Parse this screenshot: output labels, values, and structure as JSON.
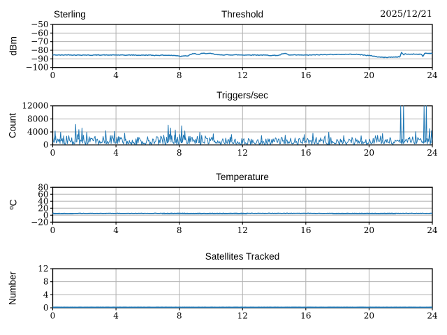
{
  "figure": {
    "background": "#ffffff",
    "line_color": "#1f77b4",
    "grid_color": "#b0b0b0",
    "spine_color": "#000000",
    "text_color": "#000000",
    "seed": 42
  },
  "chart_data": [
    {
      "type": "line",
      "title": "Threshold",
      "title_left": "Sterling",
      "title_right": "2025/12/21",
      "ylabel": "dBm",
      "xlim": [
        0,
        24
      ],
      "ylim": [
        -100,
        -50
      ],
      "xticks": [
        0,
        4,
        8,
        12,
        16,
        20,
        24
      ],
      "xtick_labels": [
        "0",
        "4",
        "8",
        "12",
        "16",
        "20",
        "24"
      ],
      "yticks": [
        -100,
        -90,
        -80,
        -70,
        -60,
        -50
      ],
      "ytick_labels": [
        "−100",
        "−90",
        "−80",
        "−70",
        "−60",
        "−50"
      ],
      "grid": true,
      "series": [
        {
          "name": "signal-strength-dbm",
          "mode": "fuzzy-line",
          "jitter": 0.38,
          "width": 1.5,
          "points": [
            [
              0,
              -85.4
            ],
            [
              0.5,
              -85.6
            ],
            [
              1,
              -85.3
            ],
            [
              1.5,
              -85.6
            ],
            [
              2,
              -85.5
            ],
            [
              2.5,
              -85.7
            ],
            [
              3,
              -85.4
            ],
            [
              3.5,
              -85.6
            ],
            [
              4,
              -85.5
            ],
            [
              4.5,
              -85.7
            ],
            [
              5,
              -85.5
            ],
            [
              5.5,
              -85.8
            ],
            [
              6,
              -85.6
            ],
            [
              6.5,
              -85.9
            ],
            [
              7,
              -85.7
            ],
            [
              7.5,
              -86.0
            ],
            [
              7.9,
              -86.2
            ],
            [
              8.1,
              -87.1
            ],
            [
              8.3,
              -86.2
            ],
            [
              8.55,
              -86.6
            ],
            [
              8.8,
              -84.2
            ],
            [
              9.0,
              -84.0
            ],
            [
              9.2,
              -84.9
            ],
            [
              9.45,
              -83.7
            ],
            [
              9.7,
              -83.6
            ],
            [
              10,
              -83.9
            ],
            [
              10.2,
              -84.6
            ],
            [
              10.5,
              -85.3
            ],
            [
              11,
              -85.4
            ],
            [
              11.5,
              -85.3
            ],
            [
              12,
              -85.5
            ],
            [
              12.5,
              -85.4
            ],
            [
              13,
              -85.5
            ],
            [
              13.5,
              -85.7
            ],
            [
              13.9,
              -86.0
            ],
            [
              14.3,
              -85.9
            ],
            [
              14.55,
              -84.0
            ],
            [
              14.75,
              -83.9
            ],
            [
              14.95,
              -85.6
            ],
            [
              15.5,
              -85.5
            ],
            [
              16,
              -85.6
            ],
            [
              16.5,
              -85.4
            ],
            [
              17,
              -85.2
            ],
            [
              17.5,
              -84.8
            ],
            [
              18,
              -84.9
            ],
            [
              18.5,
              -84.7
            ],
            [
              19,
              -84.6
            ],
            [
              19.4,
              -85.0
            ],
            [
              19.8,
              -85.8
            ],
            [
              20.2,
              -86.5
            ],
            [
              20.6,
              -87.8
            ],
            [
              21.0,
              -88.3
            ],
            [
              21.4,
              -88.0
            ],
            [
              21.7,
              -87.8
            ],
            [
              21.95,
              -87.6
            ],
            [
              22.05,
              -82.6
            ],
            [
              22.18,
              -85.2
            ],
            [
              22.3,
              -84.2
            ],
            [
              22.5,
              -84.6
            ],
            [
              22.8,
              -84.4
            ],
            [
              23.1,
              -84.5
            ],
            [
              23.3,
              -84.8
            ],
            [
              23.42,
              -87.2
            ],
            [
              23.52,
              -83.2
            ],
            [
              23.7,
              -83.7
            ],
            [
              23.85,
              -83.5
            ],
            [
              24,
              -83.6
            ]
          ]
        }
      ]
    },
    {
      "type": "line",
      "title": "Triggers/sec",
      "ylabel": "Count",
      "xlim": [
        0,
        24
      ],
      "ylim": [
        0,
        12000
      ],
      "xticks": [
        0,
        4,
        8,
        12,
        16,
        20,
        24
      ],
      "xtick_labels": [
        "0",
        "4",
        "8",
        "12",
        "16",
        "20",
        "24"
      ],
      "yticks": [
        0,
        4000,
        8000,
        12000
      ],
      "ytick_labels": [
        "0",
        "4000",
        "8000",
        "12000"
      ],
      "grid": true,
      "series": [
        {
          "name": "trigger-rate-count",
          "mode": "band",
          "band_lo": 350,
          "width": 1,
          "points": [
            [
              0,
              2800
            ],
            [
              0.3,
              3200
            ],
            [
              0.7,
              2900
            ],
            [
              1.0,
              3000
            ],
            [
              1.3,
              3300
            ],
            [
              1.6,
              3600
            ],
            [
              2.0,
              3200
            ],
            [
              2.4,
              3000
            ],
            [
              2.8,
              2800
            ],
            [
              3.2,
              3100
            ],
            [
              3.6,
              3000
            ],
            [
              4.0,
              2900
            ],
            [
              4.4,
              3100
            ],
            [
              4.8,
              2700
            ],
            [
              5.2,
              2500
            ],
            [
              5.6,
              2400
            ],
            [
              6.0,
              2600
            ],
            [
              6.4,
              2700
            ],
            [
              6.8,
              2900
            ],
            [
              7.2,
              3600
            ],
            [
              7.5,
              3400
            ],
            [
              7.8,
              3200
            ],
            [
              8.1,
              3500
            ],
            [
              8.4,
              3000
            ],
            [
              8.8,
              2700
            ],
            [
              9.2,
              3100
            ],
            [
              9.6,
              2900
            ],
            [
              10.0,
              2700
            ],
            [
              10.4,
              2800
            ],
            [
              10.8,
              2500
            ],
            [
              11.2,
              2600
            ],
            [
              11.6,
              2300
            ],
            [
              12.0,
              2400
            ],
            [
              12.5,
              2200
            ],
            [
              13.0,
              2300
            ],
            [
              13.5,
              2100
            ],
            [
              14.0,
              2200
            ],
            [
              14.5,
              2400
            ],
            [
              15.0,
              2100
            ],
            [
              15.5,
              2300
            ],
            [
              16.0,
              2500
            ],
            [
              16.5,
              2800
            ],
            [
              17.0,
              2600
            ],
            [
              17.4,
              3200
            ],
            [
              17.8,
              2700
            ],
            [
              18.2,
              2400
            ],
            [
              18.6,
              2300
            ],
            [
              19.0,
              2400
            ],
            [
              19.4,
              2300
            ],
            [
              19.8,
              2500
            ],
            [
              20.2,
              2800
            ],
            [
              20.6,
              3000
            ],
            [
              21.0,
              2900
            ],
            [
              21.4,
              2500
            ],
            [
              21.8,
              1800
            ],
            [
              22.0,
              2000
            ],
            [
              22.4,
              2400
            ],
            [
              22.8,
              3200
            ],
            [
              23.2,
              2600
            ],
            [
              23.6,
              2200
            ],
            [
              23.8,
              3600
            ],
            [
              24,
              3000
            ]
          ],
          "spikes": [
            [
              0.15,
              4300
            ],
            [
              0.5,
              3900
            ],
            [
              1.45,
              6300
            ],
            [
              1.65,
              4700
            ],
            [
              1.85,
              5200
            ],
            [
              2.15,
              3900
            ],
            [
              3.35,
              4400
            ],
            [
              3.9,
              4200
            ],
            [
              4.55,
              3600
            ],
            [
              7.3,
              6100
            ],
            [
              7.45,
              5200
            ],
            [
              7.75,
              4600
            ],
            [
              8.15,
              5900
            ],
            [
              8.35,
              4300
            ],
            [
              9.3,
              3900
            ],
            [
              10.15,
              3400
            ],
            [
              11.3,
              3200
            ],
            [
              13.2,
              2900
            ],
            [
              14.7,
              3000
            ],
            [
              15.9,
              3200
            ],
            [
              16.45,
              3600
            ],
            [
              17.45,
              3900
            ],
            [
              18.4,
              2900
            ],
            [
              19.5,
              2800
            ],
            [
              20.85,
              3500
            ],
            [
              22.0,
              14000
            ],
            [
              22.18,
              14000
            ],
            [
              22.95,
              4100
            ],
            [
              23.48,
              13500
            ],
            [
              23.62,
              13500
            ],
            [
              23.82,
              5000
            ],
            [
              23.95,
              4400
            ]
          ]
        }
      ]
    },
    {
      "type": "line",
      "title": "Temperature",
      "ylabel": "ºC",
      "xlim": [
        0,
        24
      ],
      "ylim": [
        -20,
        80
      ],
      "xticks": [
        0,
        4,
        8,
        12,
        16,
        20,
        24
      ],
      "xtick_labels": [
        "0",
        "4",
        "8",
        "12",
        "16",
        "20",
        "24"
      ],
      "yticks": [
        -20,
        0,
        20,
        40,
        60,
        80
      ],
      "ytick_labels": [
        "−20",
        "0",
        "20",
        "40",
        "60",
        "80"
      ],
      "grid": true,
      "series": [
        {
          "name": "temperature-trace-faint-1",
          "mode": "fuzzy-line",
          "jitter": 0.3,
          "width": 1,
          "opacity": 0.45,
          "points": [
            [
              0,
              3.2
            ],
            [
              1.3,
              3.2
            ]
          ]
        },
        {
          "name": "temperature-trace-faint-2",
          "mode": "fuzzy-line",
          "jitter": 0.3,
          "width": 1,
          "opacity": 0.45,
          "points": [
            [
              6.9,
              3.1
            ],
            [
              12.3,
              3.1
            ]
          ]
        },
        {
          "name": "temperature-trace-faint-3",
          "mode": "fuzzy-line",
          "jitter": 0.3,
          "width": 1,
          "opacity": 0.45,
          "points": [
            [
              17.7,
              3.0
            ],
            [
              21.7,
              3.0
            ]
          ]
        },
        {
          "name": "temperature-celsius",
          "mode": "fuzzy-line",
          "jitter": 0.55,
          "width": 1.7,
          "points": [
            [
              0,
              5.0
            ],
            [
              6,
              5.0
            ],
            [
              12,
              5.1
            ],
            [
              18,
              5.0
            ],
            [
              24,
              5.0
            ]
          ]
        }
      ]
    },
    {
      "type": "line",
      "title": "Satellites Tracked",
      "ylabel": "Number",
      "xlim": [
        0,
        24
      ],
      "ylim": [
        0,
        12
      ],
      "xticks": [
        0,
        4,
        8,
        12,
        16,
        20,
        24
      ],
      "xtick_labels": [
        "0",
        "4",
        "8",
        "12",
        "16",
        "20",
        "24"
      ],
      "yticks": [
        0,
        4,
        8,
        12
      ],
      "ytick_labels": [
        "0",
        "4",
        "8",
        "12"
      ],
      "grid": true,
      "series": [
        {
          "name": "satellites-tracked-count",
          "mode": "fuzzy-line",
          "jitter": 0.02,
          "width": 1.8,
          "points": [
            [
              0,
              0.14
            ],
            [
              24,
              0.14
            ]
          ]
        }
      ]
    }
  ]
}
